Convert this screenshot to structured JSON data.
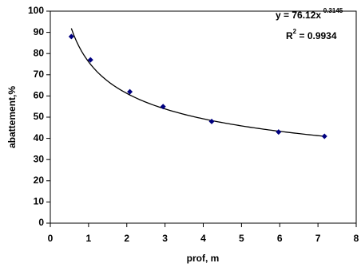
{
  "chart_data": {
    "type": "scatter",
    "x_label": "prof, m",
    "y_label": "abattement,%",
    "series": [
      {
        "name": null,
        "color": "#000080",
        "x": [
          0.55,
          1.05,
          2.08,
          2.95,
          4.22,
          5.97,
          7.17
        ],
        "values": [
          88,
          77,
          62,
          55,
          48,
          43,
          41
        ]
      }
    ],
    "trendline": {
      "type": "power",
      "color": "#000000",
      "x_range": [
        0.55,
        7.17
      ],
      "lhs": "y = ",
      "coefficient": 76.12,
      "variable": "x",
      "exponent": -0.3145,
      "r_symbol": "R",
      "r_power": 2,
      "r_equals": " = ",
      "r_squared": 0.9934
    },
    "xlim": [
      0,
      8
    ],
    "xticks": [
      0,
      1,
      2,
      3,
      4,
      5,
      6,
      7,
      8
    ],
    "ylim": [
      0,
      100
    ],
    "yticks": [
      0,
      10,
      20,
      30,
      40,
      50,
      60,
      70,
      80,
      90,
      100
    ],
    "grid": false
  }
}
